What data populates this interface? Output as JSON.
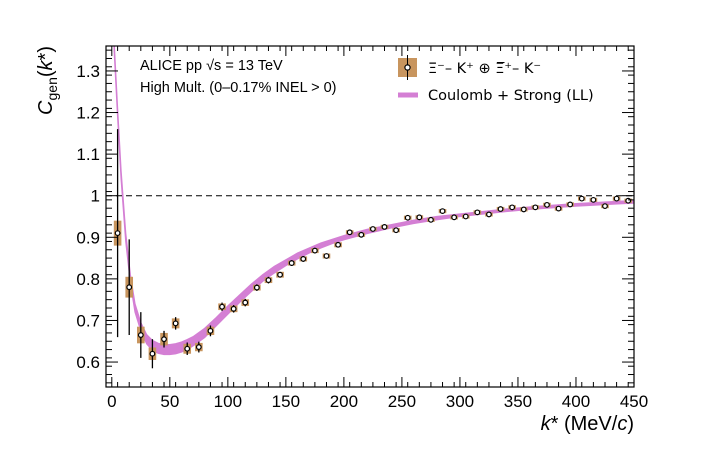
{
  "chart_data": {
    "type": "scatter",
    "xlabel": "k* (MeV/c)",
    "ylabel": "Cgen(k*)",
    "xlim": [
      -5,
      450
    ],
    "ylim": [
      0.54,
      1.36
    ],
    "xticks": [
      0,
      50,
      100,
      150,
      200,
      250,
      300,
      350,
      400,
      450
    ],
    "yticks": [
      0.6,
      0.7,
      0.8,
      0.9,
      1,
      1.1,
      1.2,
      1.3
    ],
    "xtick_labels": [
      "0",
      "50",
      "100",
      "150",
      "200",
      "250",
      "300",
      "350",
      "400",
      "450"
    ],
    "ytick_labels": [
      "0.6",
      "0.7",
      "0.8",
      "0.9",
      "1",
      "1.1",
      "1.2",
      "1.3"
    ],
    "reference_line": {
      "y": 1,
      "style": "dashed"
    },
    "annotations": {
      "line1": "ALICE pp √s = 13 TeV",
      "line2": "High Mult. (0–0.17% INEL > 0)"
    },
    "legend": {
      "data_label": "Ξ⁻– K⁺ ⊕ Ξ̅⁺– K⁻",
      "model_label": "Coulomb + Strong (LL)"
    },
    "colors": {
      "marker_edge": "#000000",
      "syst_box": "#c8955e",
      "model_band": "#d47fd4",
      "baseline": "#000000"
    },
    "series": [
      {
        "name": "data",
        "x": [
          5,
          15,
          25,
          35,
          45,
          55,
          65,
          75,
          85,
          95,
          105,
          115,
          125,
          135,
          145,
          155,
          165,
          175,
          185,
          195,
          205,
          215,
          225,
          235,
          245,
          255,
          265,
          275,
          285,
          295,
          305,
          315,
          325,
          335,
          345,
          355,
          365,
          375,
          385,
          395,
          405,
          415,
          425,
          435,
          445
        ],
        "y": [
          0.91,
          0.78,
          0.665,
          0.62,
          0.655,
          0.693,
          0.632,
          0.636,
          0.675,
          0.733,
          0.728,
          0.743,
          0.779,
          0.797,
          0.81,
          0.838,
          0.848,
          0.868,
          0.855,
          0.882,
          0.912,
          0.906,
          0.92,
          0.925,
          0.917,
          0.947,
          0.948,
          0.942,
          0.963,
          0.948,
          0.95,
          0.96,
          0.955,
          0.968,
          0.972,
          0.967,
          0.972,
          0.978,
          0.969,
          0.979,
          0.993,
          0.99,
          0.975,
          0.993,
          0.988
        ],
        "stat_err": [
          0.25,
          0.115,
          0.055,
          0.035,
          0.02,
          0.015,
          0.015,
          0.013,
          0.013,
          0.01,
          0.009,
          0.009,
          0.008,
          0.008,
          0.007,
          0.007,
          0.007,
          0.007,
          0.006,
          0.006,
          0.006,
          0.006,
          0.006,
          0.006,
          0.006,
          0.005,
          0.005,
          0.005,
          0.005,
          0.005,
          0.005,
          0.005,
          0.005,
          0.005,
          0.005,
          0.005,
          0.005,
          0.005,
          0.005,
          0.005,
          0.005,
          0.005,
          0.005,
          0.005,
          0.005
        ],
        "syst_err": [
          0.03,
          0.025,
          0.02,
          0.015,
          0.015,
          0.012,
          0.012,
          0.01,
          0.01,
          0.008,
          0.008,
          0.008,
          0.007,
          0.007,
          0.007,
          0.006,
          0.006,
          0.006,
          0.006,
          0.006,
          0.005,
          0.005,
          0.005,
          0.005,
          0.005,
          0.005,
          0.005,
          0.005,
          0.005,
          0.005,
          0.005,
          0.005,
          0.005,
          0.005,
          0.005,
          0.005,
          0.005,
          0.005,
          0.005,
          0.005,
          0.005,
          0.005,
          0.005,
          0.005,
          0.005
        ]
      },
      {
        "name": "Coulomb + Strong (LL)",
        "type": "band",
        "x": [
          2,
          5,
          8,
          12,
          16,
          20,
          25,
          30,
          35,
          40,
          45,
          50,
          55,
          60,
          65,
          70,
          80,
          90,
          100,
          110,
          120,
          130,
          140,
          150,
          160,
          170,
          180,
          190,
          200,
          220,
          240,
          260,
          280,
          300,
          320,
          340,
          360,
          380,
          400,
          420,
          440,
          450
        ],
        "y": [
          1.36,
          1.2,
          1.05,
          0.9,
          0.8,
          0.73,
          0.685,
          0.655,
          0.64,
          0.633,
          0.63,
          0.63,
          0.632,
          0.636,
          0.642,
          0.65,
          0.67,
          0.697,
          0.725,
          0.752,
          0.778,
          0.802,
          0.822,
          0.839,
          0.855,
          0.868,
          0.88,
          0.89,
          0.899,
          0.914,
          0.926,
          0.937,
          0.946,
          0.953,
          0.959,
          0.965,
          0.97,
          0.974,
          0.978,
          0.981,
          0.984,
          0.985
        ],
        "halfwidth": [
          0.01,
          0.01,
          0.01,
          0.01,
          0.01,
          0.01,
          0.01,
          0.011,
          0.012,
          0.012,
          0.012,
          0.012,
          0.012,
          0.012,
          0.012,
          0.011,
          0.011,
          0.01,
          0.01,
          0.009,
          0.009,
          0.008,
          0.008,
          0.007,
          0.007,
          0.006,
          0.006,
          0.005,
          0.005,
          0.005,
          0.004,
          0.004,
          0.004,
          0.003,
          0.003,
          0.003,
          0.003,
          0.003,
          0.003,
          0.003,
          0.003,
          0.003
        ]
      }
    ]
  }
}
